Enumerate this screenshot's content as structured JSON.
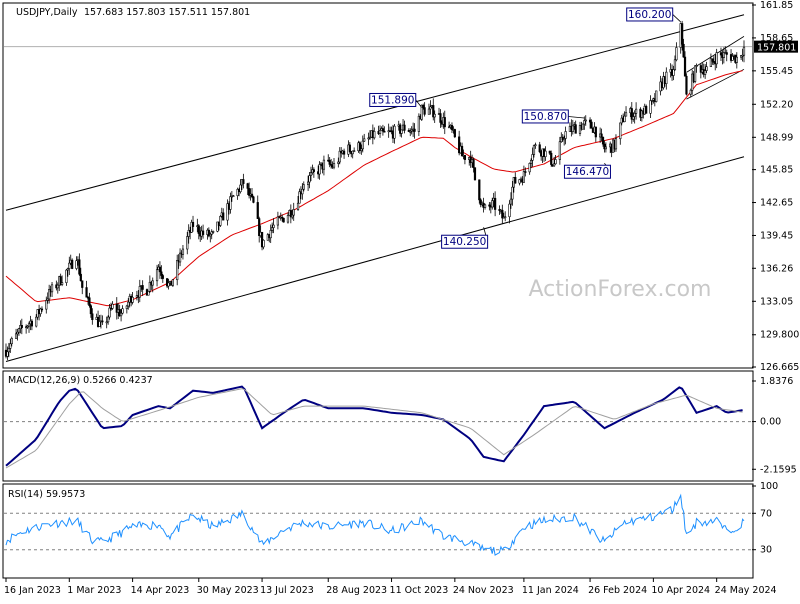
{
  "header": {
    "symbol": "USDJPY,Daily",
    "ohlc": "157.683 157.803 157.511 157.801"
  },
  "watermark": "ActionForex.com",
  "macd": {
    "label": "MACD(12,26,9) 0.5266 0.4237"
  },
  "rsi": {
    "label": "RSI(14) 59.9573"
  },
  "colors": {
    "candles": "#000000",
    "ma": "#dd0000",
    "macd": "#000080",
    "signal": "#a0a0a0",
    "rsi": "#1e90ff",
    "annotation": "#000080",
    "channel": "#000000"
  },
  "chart_data": [
    {
      "type": "candlestick",
      "title": "USDJPY,Daily",
      "y_ticks": [
        "161.85",
        "158.65",
        "155.45",
        "152.20",
        "148.99",
        "145.85",
        "142.65",
        "139.45",
        "136.26",
        "133.05",
        "129.800",
        "126.665"
      ],
      "x_ticks": [
        "16 Jan 2023",
        "1 Mar 2023",
        "14 Apr 2023",
        "30 May 2023",
        "13 Jul 2023",
        "28 Aug 2023",
        "11 Oct 2023",
        "24 Nov 2023",
        "11 Jan 2024",
        "26 Feb 2024",
        "10 Apr 2024",
        "24 May 2024"
      ],
      "ylim": [
        126.665,
        161.85
      ],
      "current_price": "157.801",
      "price_path": [
        [
          "16 Jan 2023",
          128.3
        ],
        [
          "27 Jan 2023",
          130.4
        ],
        [
          "6 Feb 2023",
          131.5
        ],
        [
          "14 Feb 2023",
          133.6
        ],
        [
          "22 Feb 2023",
          135.0
        ],
        [
          "1 Mar 2023",
          136.3
        ],
        [
          "6 Mar 2023",
          137.6
        ],
        [
          "10 Mar 2023",
          134.4
        ],
        [
          "17 Mar 2023",
          131.8
        ],
        [
          "24 Mar 2023",
          130.5
        ],
        [
          "31 Mar 2023",
          132.5
        ],
        [
          "7 Apr 2023",
          131.8
        ],
        [
          "14 Apr 2023",
          133.8
        ],
        [
          "24 Apr 2023",
          134.2
        ],
        [
          "2 May 2023",
          136.5
        ],
        [
          "10 May 2023",
          134.4
        ],
        [
          "18 May 2023",
          137.8
        ],
        [
          "26 May 2023",
          140.5
        ],
        [
          "2 Jun 2023",
          139.6
        ],
        [
          "9 Jun 2023",
          139.4
        ],
        [
          "16 Jun 2023",
          141.4
        ],
        [
          "23 Jun 2023",
          143.2
        ],
        [
          "30 Jun 2023",
          144.6
        ],
        [
          "7 Jul 2023",
          142.4
        ],
        [
          "13 Jul 2023",
          138.7
        ],
        [
          "20 Jul 2023",
          140.2
        ],
        [
          "28 Jul 2023",
          141.2
        ],
        [
          "4 Aug 2023",
          142.1
        ],
        [
          "11 Aug 2023",
          144.6
        ],
        [
          "18 Aug 2023",
          145.4
        ],
        [
          "25 Aug 2023",
          146.4
        ],
        [
          "1 Sep 2023",
          146.2
        ],
        [
          "8 Sep 2023",
          147.8
        ],
        [
          "15 Sep 2023",
          147.8
        ],
        [
          "22 Sep 2023",
          148.4
        ],
        [
          "29 Sep 2023",
          149.3
        ],
        [
          "6 Oct 2023",
          149.3
        ],
        [
          "13 Oct 2023",
          149.5
        ],
        [
          "20 Oct 2023",
          149.9
        ],
        [
          "27 Oct 2023",
          149.6
        ],
        [
          "1 Nov 2023",
          151.7
        ],
        [
          "10 Nov 2023",
          151.5
        ],
        [
          "16 Nov 2023",
          150.6
        ],
        [
          "22 Nov 2023",
          149.5
        ],
        [
          "29 Nov 2023",
          147.2
        ],
        [
          "5 Dec 2023",
          147.1
        ],
        [
          "8 Dec 2023",
          144.9
        ],
        [
          "14 Dec 2023",
          141.9
        ],
        [
          "21 Dec 2023",
          142.5
        ],
        [
          "28 Dec 2023",
          141.0
        ],
        [
          "4 Jan 2024",
          144.6
        ],
        [
          "11 Jan 2024",
          145.3
        ],
        [
          "18 Jan 2024",
          148.1
        ],
        [
          "25 Jan 2024",
          147.6
        ],
        [
          "1 Feb 2024",
          146.4
        ],
        [
          "8 Feb 2024",
          149.3
        ],
        [
          "15 Feb 2024",
          149.9
        ],
        [
          "22 Feb 2024",
          150.3
        ],
        [
          "29 Feb 2024",
          149.9
        ],
        [
          "7 Mar 2024",
          147.9
        ],
        [
          "14 Mar 2024",
          148.2
        ],
        [
          "21 Mar 2024",
          151.3
        ],
        [
          "28 Mar 2024",
          151.3
        ],
        [
          "4 Apr 2024",
          151.6
        ],
        [
          "10 Apr 2024",
          152.3
        ],
        [
          "17 Apr 2024",
          154.6
        ],
        [
          "24 Apr 2024",
          155.3
        ],
        [
          "29 Apr 2024",
          160.2
        ],
        [
          "3 May 2024",
          152.9
        ],
        [
          "10 May 2024",
          155.8
        ],
        [
          "17 May 2024",
          155.6
        ],
        [
          "24 May 2024",
          156.9
        ],
        [
          "31 May 2024",
          157.0
        ],
        [
          "7 Jun 2024",
          156.7
        ],
        [
          "12 Jun 2024",
          157.7
        ]
      ],
      "ma_path": [
        [
          "16 Jan 2023",
          135.5
        ],
        [
          "6 Feb 2023",
          133.0
        ],
        [
          "1 Mar 2023",
          133.4
        ],
        [
          "28 Mar 2023",
          132.6
        ],
        [
          "14 Apr 2023",
          133.2
        ],
        [
          "10 May 2023",
          134.9
        ],
        [
          "30 May 2023",
          137.4
        ],
        [
          "22 Jun 2023",
          139.5
        ],
        [
          "13 Jul 2023",
          140.6
        ],
        [
          "4 Aug 2023",
          141.9
        ],
        [
          "28 Aug 2023",
          143.8
        ],
        [
          "22 Sep 2023",
          146.3
        ],
        [
          "11 Oct 2023",
          147.6
        ],
        [
          "1 Nov 2023",
          149.0
        ],
        [
          "16 Nov 2023",
          148.9
        ],
        [
          "5 Dec 2023",
          147.1
        ],
        [
          "24 Nov 2023",
          148.0
        ],
        [
          "21 Dec 2023",
          145.9
        ],
        [
          "4 Jan 2024",
          145.6
        ],
        [
          "25 Jan 2024",
          146.4
        ],
        [
          "15 Feb 2024",
          148.0
        ],
        [
          "14 Mar 2024",
          148.9
        ],
        [
          "4 Apr 2024",
          150.1
        ],
        [
          "24 Apr 2024",
          151.3
        ],
        [
          "10 May 2024",
          154.1
        ],
        [
          "31 May 2024",
          155.1
        ],
        [
          "12 Jun 2024",
          155.5
        ]
      ],
      "channel": [
        {
          "name": "upper",
          "start": [
            "16 Jan 2023",
            141.9
          ],
          "end": [
            "12 Jun 2024",
            160.9
          ]
        },
        {
          "name": "lower",
          "start": [
            "16 Jan 2023",
            127.2
          ],
          "end": [
            "12 Jun 2024",
            147.1
          ]
        }
      ],
      "annotations": [
        {
          "label": "151.890",
          "x": "1 Nov 2023",
          "y": 151.89
        },
        {
          "label": "140.250",
          "x": "14 Dec 2023",
          "y": 140.25
        },
        {
          "label": "150.870",
          "x": "22 Feb 2024",
          "y": 150.87
        },
        {
          "label": "146.470",
          "x": "7 Mar 2024",
          "y": 146.47
        },
        {
          "label": "160.200",
          "x": "29 Apr 2024",
          "y": 160.2
        }
      ]
    },
    {
      "type": "line",
      "title": "MACD(12,26,9) 0.5266 0.4237",
      "y_ticks": [
        "1.8376",
        "0.00",
        "-2.1595"
      ],
      "ylim": [
        -2.6,
        2.2
      ],
      "zero_line": 0,
      "series": [
        {
          "name": "MACD",
          "values": [
            [
              "16 Jan 2023",
              -2.0
            ],
            [
              "6 Feb 2023",
              -0.8
            ],
            [
              "22 Feb 2023",
              0.9
            ],
            [
              "1 Mar 2023",
              1.4
            ],
            [
              "6 Mar 2023",
              1.5
            ],
            [
              "17 Mar 2023",
              0.4
            ],
            [
              "24 Mar 2023",
              -0.3
            ],
            [
              "7 Apr 2023",
              -0.2
            ],
            [
              "14 Apr 2023",
              0.3
            ],
            [
              "2 May 2023",
              0.7
            ],
            [
              "10 May 2023",
              0.6
            ],
            [
              "26 May 2023",
              1.4
            ],
            [
              "9 Jun 2023",
              1.3
            ],
            [
              "30 Jun 2023",
              1.6
            ],
            [
              "13 Jul 2023",
              -0.3
            ],
            [
              "28 Jul 2023",
              0.4
            ],
            [
              "11 Aug 2023",
              1.0
            ],
            [
              "28 Aug 2023",
              0.6
            ],
            [
              "22 Sep 2023",
              0.6
            ],
            [
              "11 Oct 2023",
              0.4
            ],
            [
              "1 Nov 2023",
              0.3
            ],
            [
              "16 Nov 2023",
              0.1
            ],
            [
              "5 Dec 2023",
              -0.8
            ],
            [
              "14 Dec 2023",
              -1.6
            ],
            [
              "28 Dec 2023",
              -1.8
            ],
            [
              "11 Jan 2024",
              -0.6
            ],
            [
              "25 Jan 2024",
              0.7
            ],
            [
              "15 Feb 2024",
              0.9
            ],
            [
              "7 Mar 2024",
              -0.3
            ],
            [
              "28 Mar 2024",
              0.4
            ],
            [
              "17 Apr 2024",
              1.0
            ],
            [
              "29 Apr 2024",
              1.6
            ],
            [
              "10 May 2024",
              0.4
            ],
            [
              "24 May 2024",
              0.7
            ],
            [
              "31 May 2024",
              0.4
            ],
            [
              "12 Jun 2024",
              0.53
            ]
          ]
        },
        {
          "name": "Signal",
          "values": [
            [
              "16 Jan 2023",
              -2.1
            ],
            [
              "6 Feb 2023",
              -1.3
            ],
            [
              "1 Mar 2023",
              0.8
            ],
            [
              "10 Mar 2023",
              1.4
            ],
            [
              "24 Mar 2023",
              0.6
            ],
            [
              "7 Apr 2023",
              0.0
            ],
            [
              "2 May 2023",
              0.5
            ],
            [
              "30 May 2023",
              1.1
            ],
            [
              "30 Jun 2023",
              1.5
            ],
            [
              "20 Jul 2023",
              0.3
            ],
            [
              "11 Aug 2023",
              0.7
            ],
            [
              "22 Sep 2023",
              0.7
            ],
            [
              "1 Nov 2023",
              0.4
            ],
            [
              "5 Dec 2023",
              -0.3
            ],
            [
              "28 Dec 2023",
              -1.5
            ],
            [
              "18 Jan 2024",
              -0.6
            ],
            [
              "15 Feb 2024",
              0.7
            ],
            [
              "14 Mar 2024",
              0.1
            ],
            [
              "10 Apr 2024",
              0.8
            ],
            [
              "3 May 2024",
              1.2
            ],
            [
              "24 May 2024",
              0.6
            ],
            [
              "12 Jun 2024",
              0.42
            ]
          ]
        }
      ]
    },
    {
      "type": "line",
      "title": "RSI(14) 59.9573",
      "y_ticks": [
        "100",
        "70",
        "30",
        "0"
      ],
      "ylim": [
        0,
        100
      ],
      "reference_lines": [
        70,
        30
      ],
      "series": [
        {
          "name": "RSI(14)",
          "values": [
            [
              "16 Jan 2023",
              40
            ],
            [
              "27 Jan 2023",
              50
            ],
            [
              "14 Feb 2023",
              58
            ],
            [
              "6 Mar 2023",
              62
            ],
            [
              "17 Mar 2023",
              40
            ],
            [
              "24 Mar 2023",
              38
            ],
            [
              "14 Apr 2023",
              55
            ],
            [
              "2 May 2023",
              58
            ],
            [
              "10 May 2023",
              45
            ],
            [
              "26 May 2023",
              68
            ],
            [
              "9 Jun 2023",
              55
            ],
            [
              "30 Jun 2023",
              70
            ],
            [
              "13 Jul 2023",
              35
            ],
            [
              "28 Jul 2023",
              52
            ],
            [
              "11 Aug 2023",
              60
            ],
            [
              "28 Aug 2023",
              55
            ],
            [
              "22 Sep 2023",
              60
            ],
            [
              "11 Oct 2023",
              50
            ],
            [
              "1 Nov 2023",
              62
            ],
            [
              "16 Nov 2023",
              45
            ],
            [
              "29 Nov 2023",
              40
            ],
            [
              "14 Dec 2023",
              30
            ],
            [
              "28 Dec 2023",
              28
            ],
            [
              "11 Jan 2024",
              55
            ],
            [
              "25 Jan 2024",
              62
            ],
            [
              "15 Feb 2024",
              66
            ],
            [
              "7 Mar 2024",
              38
            ],
            [
              "21 Mar 2024",
              60
            ],
            [
              "10 Apr 2024",
              66
            ],
            [
              "24 Apr 2024",
              75
            ],
            [
              "29 Apr 2024",
              92
            ],
            [
              "3 May 2024",
              45
            ],
            [
              "10 May 2024",
              60
            ],
            [
              "24 May 2024",
              62
            ],
            [
              "31 May 2024",
              50
            ],
            [
              "12 Jun 2024",
              60
            ]
          ]
        }
      ]
    }
  ]
}
